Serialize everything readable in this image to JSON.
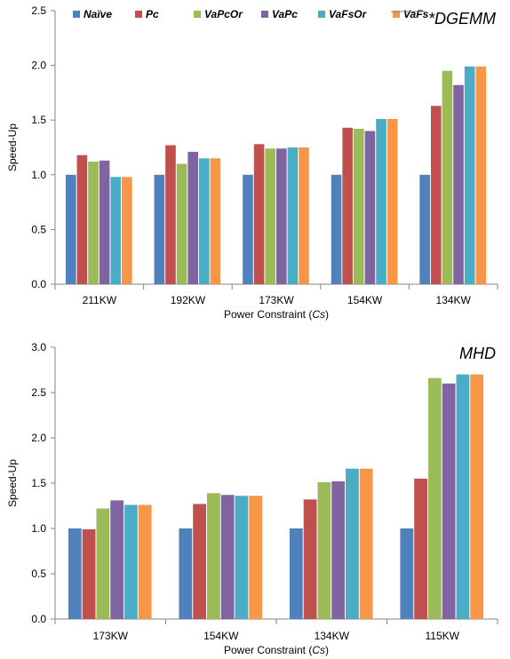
{
  "chart_data": [
    {
      "type": "bar",
      "title": "*DGEMM",
      "xlabel": "Power Constraint (Cs)",
      "xlabel_main": "Power Constraint  (",
      "xlabel_italic": "Cs",
      "xlabel_close": ")",
      "ylabel": "Speed-Up",
      "ylim": [
        0,
        2.5
      ],
      "yticks": [
        "0.0",
        "0.5",
        "1.0",
        "1.5",
        "2.0",
        "2.5"
      ],
      "categories": [
        "211KW",
        "192KW",
        "173KW",
        "154KW",
        "134KW"
      ],
      "legend_position": "top",
      "grid": false,
      "series": [
        {
          "name": "Naïve",
          "color": "#4F81BD",
          "values": [
            1.0,
            1.0,
            1.0,
            1.0,
            1.0
          ]
        },
        {
          "name": "Pc",
          "color": "#C0504D",
          "values": [
            1.18,
            1.27,
            1.28,
            1.43,
            1.63
          ]
        },
        {
          "name": "VaPcOr",
          "color": "#9BBB59",
          "values": [
            1.12,
            1.1,
            1.24,
            1.42,
            1.95
          ]
        },
        {
          "name": "VaPc",
          "color": "#8064A2",
          "values": [
            1.13,
            1.21,
            1.24,
            1.4,
            1.82
          ]
        },
        {
          "name": "VaFsOr",
          "color": "#4BACC6",
          "values": [
            0.98,
            1.15,
            1.25,
            1.51,
            1.99
          ]
        },
        {
          "name": "VaFs",
          "color": "#F79646",
          "values": [
            0.98,
            1.15,
            1.25,
            1.51,
            1.99
          ]
        }
      ]
    },
    {
      "type": "bar",
      "title": "MHD",
      "xlabel": "Power Constraint (Cs)",
      "xlabel_main": "Power Constraint  (",
      "xlabel_italic": "Cs",
      "xlabel_close": ")",
      "ylabel": "Speed-Up",
      "ylim": [
        0,
        3.0
      ],
      "yticks": [
        "0.0",
        "0.5",
        "1.0",
        "1.5",
        "2.0",
        "2.5",
        "3.0"
      ],
      "categories": [
        "173KW",
        "154KW",
        "134KW",
        "115KW"
      ],
      "grid": false,
      "series": [
        {
          "name": "Naïve",
          "color": "#4F81BD",
          "values": [
            1.0,
            1.0,
            1.0,
            1.0
          ]
        },
        {
          "name": "Pc",
          "color": "#C0504D",
          "values": [
            0.99,
            1.27,
            1.32,
            1.55
          ]
        },
        {
          "name": "VaPcOr",
          "color": "#9BBB59",
          "values": [
            1.22,
            1.39,
            1.51,
            2.66
          ]
        },
        {
          "name": "VaPc",
          "color": "#8064A2",
          "values": [
            1.31,
            1.37,
            1.52,
            2.6
          ]
        },
        {
          "name": "VaFsOr",
          "color": "#4BACC6",
          "values": [
            1.26,
            1.36,
            1.66,
            2.7
          ]
        },
        {
          "name": "VaFs",
          "color": "#F79646",
          "values": [
            1.26,
            1.36,
            1.66,
            2.7
          ]
        }
      ]
    }
  ]
}
